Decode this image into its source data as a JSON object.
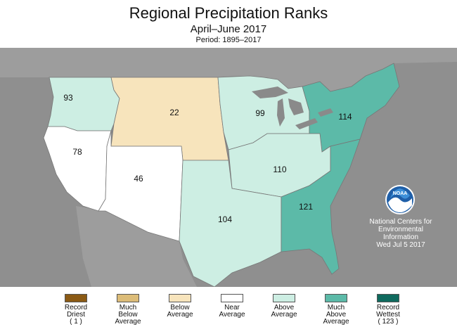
{
  "header": {
    "title": "Regional Precipitation Ranks",
    "subtitle": "April–June 2017",
    "period": "Period: 1895–2017"
  },
  "regions": [
    {
      "id": "northwest",
      "rank": "93",
      "category": "above-average"
    },
    {
      "id": "west-north-central",
      "rank": "22",
      "category": "below-average"
    },
    {
      "id": "east-north-central",
      "rank": "99",
      "category": "above-average"
    },
    {
      "id": "northeast",
      "rank": "114",
      "category": "much-above-average"
    },
    {
      "id": "west",
      "rank": "78",
      "category": "near-average"
    },
    {
      "id": "southwest",
      "rank": "46",
      "category": "near-average"
    },
    {
      "id": "central",
      "rank": "110",
      "category": "above-average"
    },
    {
      "id": "south",
      "rank": "104",
      "category": "above-average"
    },
    {
      "id": "southeast",
      "rank": "121",
      "category": "much-above-average"
    }
  ],
  "credit": {
    "logo_text": "NOAA",
    "line1": "National Centers for",
    "line2": "Environmental",
    "line3": "Information",
    "date": "Wed Jul  5 2017"
  },
  "legend": [
    {
      "line1": "Record",
      "line2": "Driest",
      "line3": "( 1 )",
      "color": "#8b5a14"
    },
    {
      "line1": "Much",
      "line2": "Below",
      "line3": "Average",
      "color": "#dcbc78"
    },
    {
      "line1": "Below",
      "line2": "Average",
      "line3": "",
      "color": "#f7e4bc"
    },
    {
      "line1": "Near",
      "line2": "Average",
      "line3": "",
      "color": "#ffffff"
    },
    {
      "line1": "Above",
      "line2": "Average",
      "line3": "",
      "color": "#cdeee3"
    },
    {
      "line1": "Much",
      "line2": "Above",
      "line3": "Average",
      "color": "#5cbaa8"
    },
    {
      "line1": "Record",
      "line2": "Wettest",
      "line3": "( 123 )",
      "color": "#0f6a5e"
    }
  ],
  "colors": {
    "background": "#8f8f8f",
    "canada": "#9a9a9a",
    "ocean": "#8a8a8a",
    "border": "#777777"
  }
}
